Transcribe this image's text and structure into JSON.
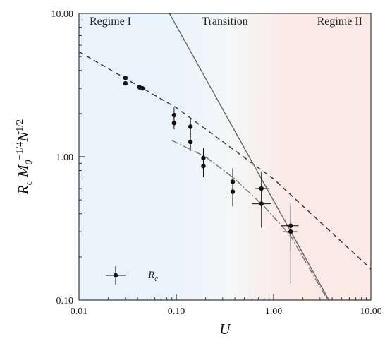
{
  "chart_data": {
    "type": "scatter",
    "xscale": "log",
    "yscale": "log",
    "xlim": [
      0.01,
      10
    ],
    "ylim": [
      0.1,
      10
    ],
    "xticks": [
      0.01,
      0.1,
      1,
      10
    ],
    "yticks": [
      0.1,
      1,
      10
    ],
    "xtick_labels": [
      "0.01",
      "0.10",
      "1.00",
      "10.00"
    ],
    "ytick_labels": [
      "0.10",
      "1.00",
      "10.00"
    ],
    "xlabel": "U",
    "ylabel": "R_c M_0^{-1/4} N^{1/2}",
    "ylabel_parts": {
      "r": "R",
      "r_sub": "c",
      "m": "M",
      "m_sub": "0",
      "m_sup": "−1/4",
      "n": "N",
      "n_sup": "1/2"
    },
    "legend": {
      "label": "R",
      "sub": "c",
      "placement": "bottom-left"
    },
    "regimes": [
      {
        "label": "Regime I",
        "from": 0.01,
        "to": 0.1,
        "color": "#e8f3fb"
      },
      {
        "label": "Transition",
        "from": 0.1,
        "to": 1.0,
        "color": "#f4f7f8"
      },
      {
        "label": "Regime II",
        "from": 1.0,
        "to": 10,
        "color": "#fbe9e6"
      }
    ],
    "series": [
      {
        "marker": "circle",
        "color": "#111111",
        "points": [
          {
            "x": 0.03,
            "y": 3.55
          },
          {
            "x": 0.03,
            "y": 3.25
          },
          {
            "x": 0.042,
            "y": 3.05
          },
          {
            "x": 0.045,
            "y": 3.0
          },
          {
            "x": 0.095,
            "y": 1.95,
            "yerr": [
              1.72,
              2.2
            ]
          },
          {
            "x": 0.095,
            "y": 1.72,
            "yerr": [
              1.55,
              1.92
            ]
          },
          {
            "x": 0.14,
            "y": 1.62,
            "yerr": [
              1.42,
              1.85
            ]
          },
          {
            "x": 0.14,
            "y": 1.27,
            "yerr": [
              1.1,
              1.45
            ]
          },
          {
            "x": 0.19,
            "y": 0.98,
            "yerr": [
              0.83,
              1.15
            ]
          },
          {
            "x": 0.19,
            "y": 0.86,
            "yerr": [
              0.72,
              1.0
            ]
          },
          {
            "x": 0.38,
            "y": 0.67,
            "yerr": [
              0.5,
              0.83
            ]
          },
          {
            "x": 0.38,
            "y": 0.57,
            "yerr": [
              0.45,
              0.72
            ]
          },
          {
            "x": 0.75,
            "y": 0.6,
            "xerr": [
              0.65,
              0.9
            ],
            "yerr": [
              0.44,
              0.78
            ]
          },
          {
            "x": 0.75,
            "y": 0.47,
            "xerr": [
              0.6,
              0.95
            ],
            "yerr": [
              0.32,
              0.62
            ]
          },
          {
            "x": 1.5,
            "y": 0.33,
            "xerr": [
              1.2,
              1.8
            ],
            "yerr": [
              0.22,
              0.48
            ]
          },
          {
            "x": 1.5,
            "y": 0.3,
            "xerr": [
              1.25,
              1.75
            ],
            "yerr": [
              0.13,
              0.45
            ]
          }
        ]
      }
    ],
    "fit_lines": [
      {
        "style": "dashed",
        "color": "#333333",
        "x": [
          0.01,
          0.1,
          1,
          10
        ],
        "y": [
          5.4,
          2.2,
          0.7,
          0.165
        ]
      },
      {
        "style": "solid",
        "color": "#666666",
        "x": [
          0.085,
          3.7
        ],
        "y": [
          10,
          0.1
        ]
      },
      {
        "style": "dash-dot",
        "color": "#777777",
        "x": [
          0.09,
          0.2,
          0.4,
          0.8,
          1.5,
          3.6
        ],
        "y": [
          1.3,
          1.0,
          0.7,
          0.45,
          0.28,
          0.1
        ]
      }
    ]
  }
}
